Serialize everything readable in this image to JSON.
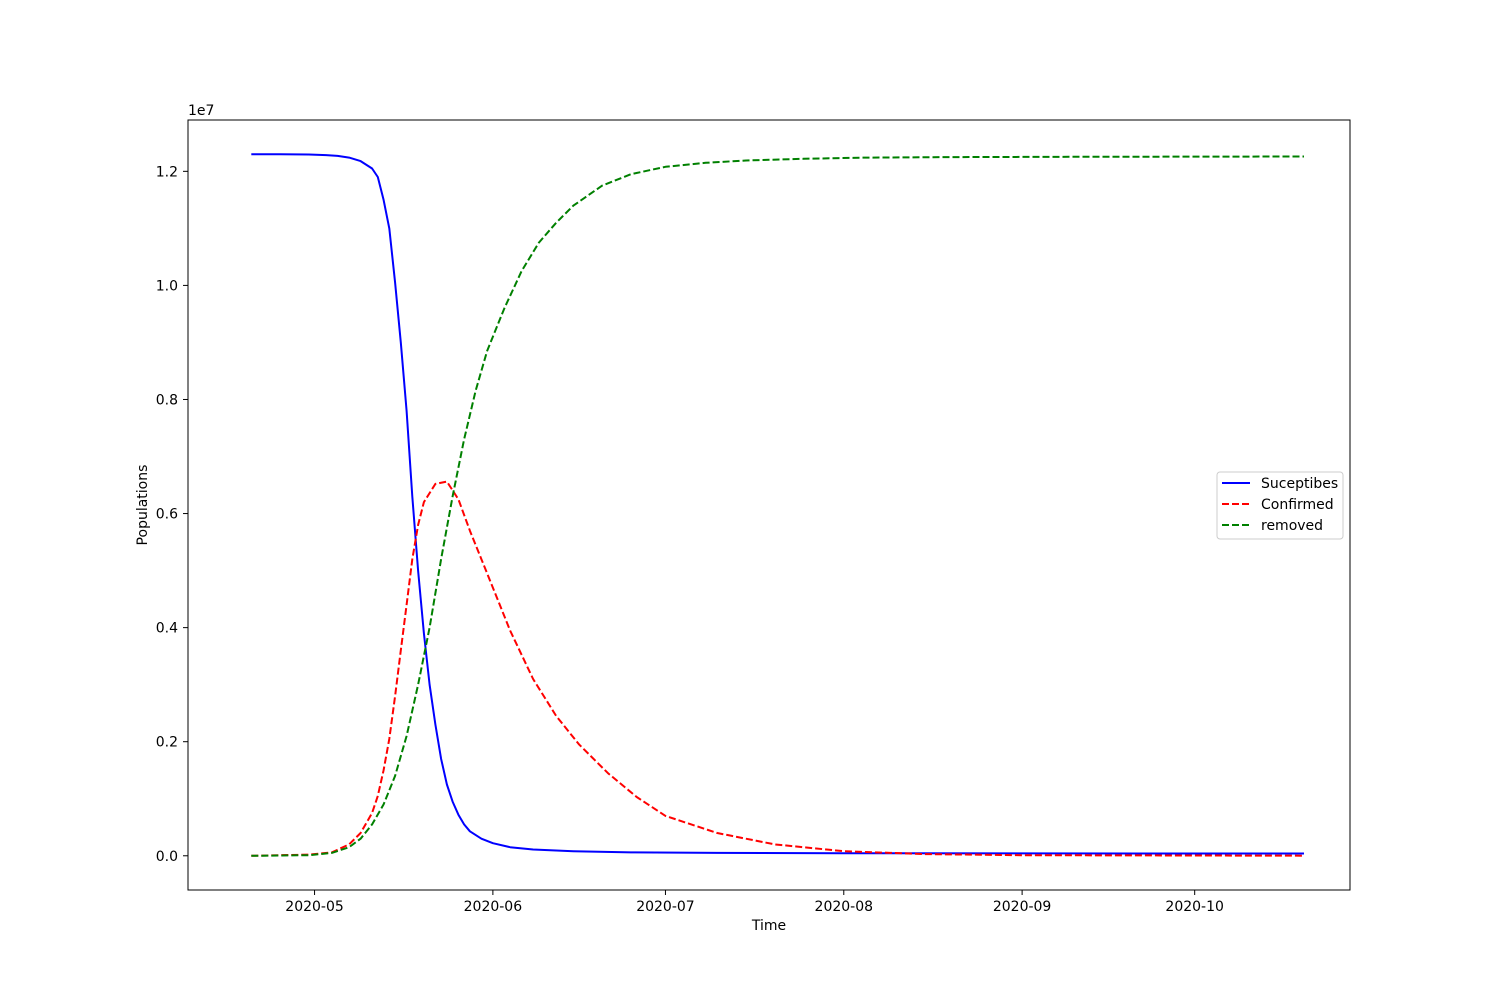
{
  "chart_data": {
    "type": "line",
    "title": "",
    "xlabel": "Time",
    "ylabel": "Populations",
    "y_offset_label": "1e7",
    "y_scale": 10000000,
    "xlim": [
      "2020-04-09",
      "2020-10-28"
    ],
    "ylim": [
      -600000,
      12900000
    ],
    "grid": false,
    "legend_position": "center-right",
    "x_ticks": [
      {
        "date": "2020-05-01",
        "label": "2020-05"
      },
      {
        "date": "2020-06-01",
        "label": "2020-06"
      },
      {
        "date": "2020-07-01",
        "label": "2020-07"
      },
      {
        "date": "2020-08-01",
        "label": "2020-08"
      },
      {
        "date": "2020-09-01",
        "label": "2020-09"
      },
      {
        "date": "2020-10-01",
        "label": "2020-10"
      }
    ],
    "y_ticks": [
      {
        "value": 0,
        "label": "0.0"
      },
      {
        "value": 2000000,
        "label": "0.2"
      },
      {
        "value": 4000000,
        "label": "0.4"
      },
      {
        "value": 6000000,
        "label": "0.6"
      },
      {
        "value": 8000000,
        "label": "0.8"
      },
      {
        "value": 10000000,
        "label": "1.0"
      },
      {
        "value": 12000000,
        "label": "1.2"
      }
    ],
    "series": [
      {
        "name": "Suceptibes",
        "color": "#0000ff",
        "dash": "solid",
        "x": [
          "2020-04-20",
          "2020-04-25",
          "2020-04-30",
          "2020-05-03",
          "2020-05-05",
          "2020-05-07",
          "2020-05-09",
          "2020-05-11",
          "2020-05-12",
          "2020-05-13",
          "2020-05-14",
          "2020-05-15",
          "2020-05-16",
          "2020-05-17",
          "2020-05-18",
          "2020-05-19",
          "2020-05-20",
          "2020-05-21",
          "2020-05-22",
          "2020-05-23",
          "2020-05-24",
          "2020-05-25",
          "2020-05-26",
          "2020-05-27",
          "2020-05-28",
          "2020-05-30",
          "2020-06-01",
          "2020-06-04",
          "2020-06-08",
          "2020-06-15",
          "2020-06-25",
          "2020-07-10",
          "2020-08-01",
          "2020-09-01",
          "2020-10-20"
        ],
        "y": [
          12300000,
          12299000,
          12295000,
          12285000,
          12270000,
          12240000,
          12180000,
          12050000,
          11900000,
          11500000,
          11000000,
          10050000,
          9000000,
          7800000,
          6300000,
          5000000,
          3900000,
          3000000,
          2300000,
          1700000,
          1250000,
          950000,
          720000,
          550000,
          430000,
          300000,
          220000,
          150000,
          110000,
          80000,
          60000,
          50000,
          45000,
          42000,
          40000
        ]
      },
      {
        "name": "Confirmed",
        "color": "#ff0000",
        "dash": "dashed",
        "x": [
          "2020-04-20",
          "2020-04-30",
          "2020-05-04",
          "2020-05-07",
          "2020-05-09",
          "2020-05-11",
          "2020-05-12",
          "2020-05-13",
          "2020-05-14",
          "2020-05-15",
          "2020-05-16",
          "2020-05-17",
          "2020-05-18",
          "2020-05-19",
          "2020-05-20",
          "2020-05-22",
          "2020-05-24",
          "2020-05-26",
          "2020-05-28",
          "2020-05-30",
          "2020-06-01",
          "2020-06-04",
          "2020-06-08",
          "2020-06-12",
          "2020-06-16",
          "2020-06-21",
          "2020-06-26",
          "2020-07-01",
          "2020-07-10",
          "2020-07-20",
          "2020-08-01",
          "2020-08-15",
          "2020-09-01",
          "2020-10-20"
        ],
        "y": [
          0,
          20000,
          60000,
          200000,
          400000,
          750000,
          1050000,
          1500000,
          2050000,
          2800000,
          3600000,
          4400000,
          5200000,
          5800000,
          6200000,
          6520000,
          6560000,
          6250000,
          5700000,
          5200000,
          4700000,
          3950000,
          3100000,
          2450000,
          1950000,
          1450000,
          1030000,
          700000,
          400000,
          200000,
          80000,
          30000,
          10000,
          2000
        ]
      },
      {
        "name": "removed",
        "color": "#008000",
        "dash": "dashed",
        "x": [
          "2020-04-20",
          "2020-04-30",
          "2020-05-04",
          "2020-05-07",
          "2020-05-09",
          "2020-05-11",
          "2020-05-13",
          "2020-05-15",
          "2020-05-17",
          "2020-05-19",
          "2020-05-21",
          "2020-05-23",
          "2020-05-25",
          "2020-05-27",
          "2020-05-29",
          "2020-05-31",
          "2020-06-03",
          "2020-06-06",
          "2020-06-09",
          "2020-06-12",
          "2020-06-15",
          "2020-06-20",
          "2020-06-25",
          "2020-07-01",
          "2020-07-08",
          "2020-07-15",
          "2020-07-25",
          "2020-08-05",
          "2020-08-20",
          "2020-09-10",
          "2020-10-20"
        ],
        "y": [
          0,
          10000,
          50000,
          150000,
          300000,
          550000,
          900000,
          1400000,
          2100000,
          3000000,
          4000000,
          5200000,
          6300000,
          7300000,
          8150000,
          8850000,
          9600000,
          10250000,
          10750000,
          11100000,
          11400000,
          11750000,
          11950000,
          12080000,
          12150000,
          12190000,
          12220000,
          12240000,
          12250000,
          12255000,
          12260000
        ]
      }
    ]
  }
}
